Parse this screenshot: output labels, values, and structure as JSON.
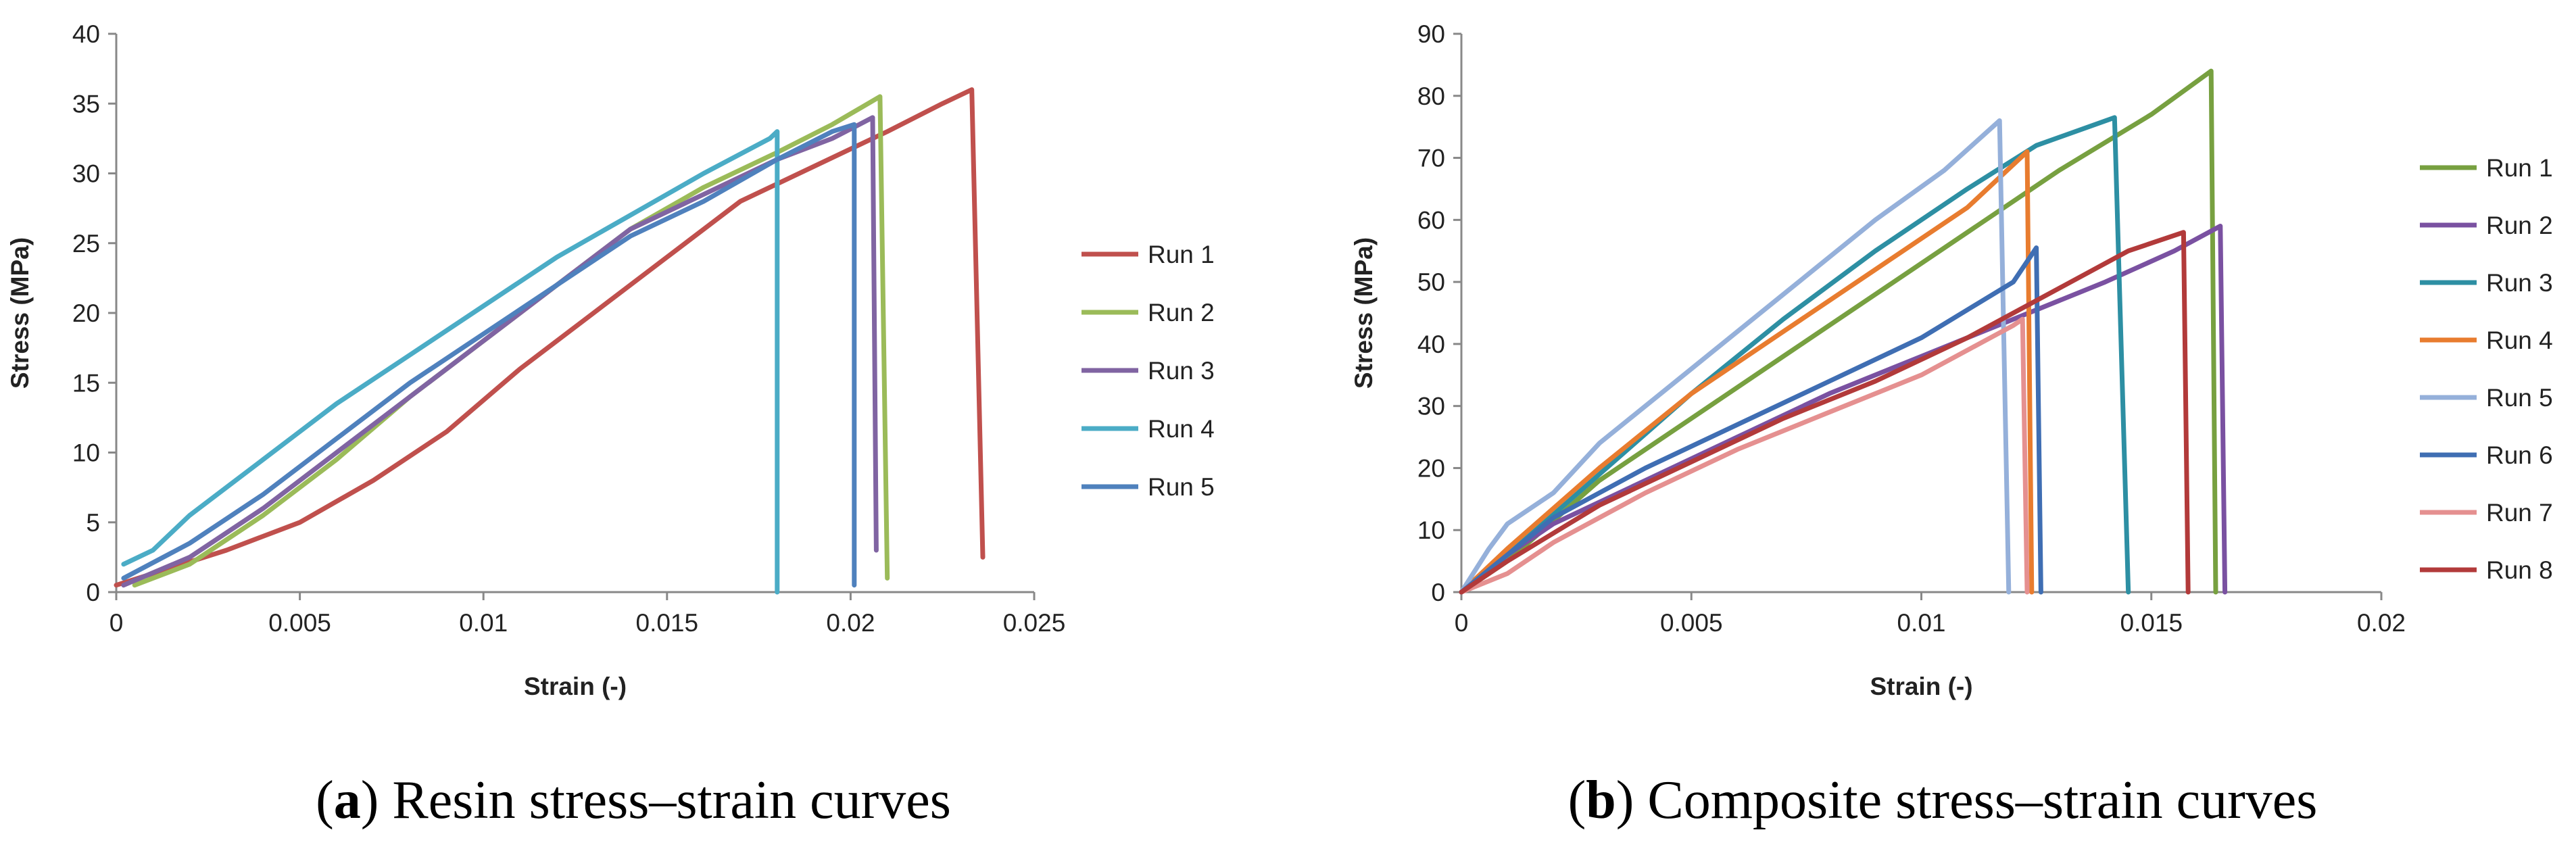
{
  "chart_data": [
    {
      "type": "line",
      "caption_letter": "a",
      "caption_text": ") Resin stress–strain curves",
      "caption_open": "(",
      "xlabel": "Strain (-)",
      "ylabel": "Stress (MPa)",
      "xlim": [
        0,
        0.025
      ],
      "ylim": [
        0,
        40
      ],
      "xticks": [
        0,
        0.005,
        0.01,
        0.015,
        0.02,
        0.025
      ],
      "xtick_labels": [
        "0",
        "0.005",
        "0.01",
        "0.015",
        "0.02",
        "0.025"
      ],
      "yticks": [
        0,
        5,
        10,
        15,
        20,
        25,
        30,
        35,
        40
      ],
      "ytick_labels": [
        "0",
        "5",
        "10",
        "15",
        "20",
        "25",
        "30",
        "35",
        "40"
      ],
      "legend_position": "right",
      "series": [
        {
          "name": "Run 1",
          "color": "#C0504D",
          "points": [
            [
              0,
              0.5
            ],
            [
              0.003,
              3
            ],
            [
              0.004,
              4
            ],
            [
              0.005,
              5
            ],
            [
              0.007,
              8
            ],
            [
              0.009,
              11.5
            ],
            [
              0.011,
              16
            ],
            [
              0.013,
              20
            ],
            [
              0.015,
              24
            ],
            [
              0.017,
              28
            ],
            [
              0.019,
              30.5
            ],
            [
              0.021,
              33
            ],
            [
              0.0225,
              35
            ],
            [
              0.0233,
              36
            ],
            [
              0.0236,
              2.5
            ]
          ]
        },
        {
          "name": "Run 2",
          "color": "#9BBB59",
          "points": [
            [
              0.0005,
              0.5
            ],
            [
              0.002,
              2
            ],
            [
              0.004,
              5.5
            ],
            [
              0.006,
              9.5
            ],
            [
              0.008,
              14
            ],
            [
              0.01,
              18
            ],
            [
              0.012,
              22
            ],
            [
              0.014,
              26
            ],
            [
              0.016,
              29
            ],
            [
              0.018,
              31.5
            ],
            [
              0.0195,
              33.5
            ],
            [
              0.0208,
              35.5
            ],
            [
              0.021,
              1
            ]
          ]
        },
        {
          "name": "Run 3",
          "color": "#8064A2",
          "points": [
            [
              0.0002,
              0.5
            ],
            [
              0.002,
              2.5
            ],
            [
              0.004,
              6
            ],
            [
              0.006,
              10
            ],
            [
              0.008,
              14
            ],
            [
              0.01,
              18
            ],
            [
              0.012,
              22
            ],
            [
              0.014,
              26
            ],
            [
              0.016,
              28.5
            ],
            [
              0.018,
              31
            ],
            [
              0.0195,
              32.5
            ],
            [
              0.0206,
              34
            ],
            [
              0.0207,
              3
            ]
          ]
        },
        {
          "name": "Run 4",
          "color": "#4BACC6",
          "points": [
            [
              0.0002,
              2
            ],
            [
              0.001,
              3
            ],
            [
              0.002,
              5.5
            ],
            [
              0.003,
              7.5
            ],
            [
              0.004,
              9.5
            ],
            [
              0.005,
              11.5
            ],
            [
              0.006,
              13.5
            ],
            [
              0.008,
              17
            ],
            [
              0.01,
              20.5
            ],
            [
              0.012,
              24
            ],
            [
              0.014,
              27
            ],
            [
              0.016,
              30
            ],
            [
              0.0178,
              32.5
            ],
            [
              0.018,
              33
            ],
            [
              0.018,
              0
            ]
          ]
        },
        {
          "name": "Run 5",
          "color": "#4F81BD",
          "points": [
            [
              0.0002,
              1
            ],
            [
              0.002,
              3.5
            ],
            [
              0.004,
              7
            ],
            [
              0.006,
              11
            ],
            [
              0.008,
              15
            ],
            [
              0.01,
              18.5
            ],
            [
              0.012,
              22
            ],
            [
              0.014,
              25.5
            ],
            [
              0.016,
              28
            ],
            [
              0.018,
              31
            ],
            [
              0.0195,
              33
            ],
            [
              0.0201,
              33.5
            ],
            [
              0.0201,
              0.5
            ]
          ]
        }
      ]
    },
    {
      "type": "line",
      "caption_letter": "b",
      "caption_text": ") Composite stress–strain curves",
      "caption_open": "(",
      "xlabel": "Strain (-)",
      "ylabel": "Stress (MPa)",
      "xlim": [
        0,
        0.02
      ],
      "ylim": [
        0,
        90
      ],
      "xticks": [
        0,
        0.005,
        0.01,
        0.015,
        0.02
      ],
      "xtick_labels": [
        "0",
        "0.005",
        "0.01",
        "0.015",
        "0.02"
      ],
      "yticks": [
        0,
        10,
        20,
        30,
        40,
        50,
        60,
        70,
        80,
        90
      ],
      "ytick_labels": [
        "0",
        "10",
        "20",
        "30",
        "40",
        "50",
        "60",
        "70",
        "80",
        "90"
      ],
      "legend_position": "right",
      "series": [
        {
          "name": "Run 1",
          "color": "#77A040",
          "points": [
            [
              0,
              0
            ],
            [
              0.001,
              5
            ],
            [
              0.003,
              18
            ],
            [
              0.005,
              28
            ],
            [
              0.007,
              38
            ],
            [
              0.009,
              48
            ],
            [
              0.011,
              58
            ],
            [
              0.013,
              68
            ],
            [
              0.015,
              77
            ],
            [
              0.0163,
              84
            ],
            [
              0.0164,
              0
            ]
          ]
        },
        {
          "name": "Run 2",
          "color": "#7A51A1",
          "points": [
            [
              0,
              0
            ],
            [
              0.001,
              6
            ],
            [
              0.002,
              11
            ],
            [
              0.004,
              18
            ],
            [
              0.006,
              25
            ],
            [
              0.008,
              32
            ],
            [
              0.01,
              38
            ],
            [
              0.012,
              44
            ],
            [
              0.014,
              50
            ],
            [
              0.0155,
              55
            ],
            [
              0.0165,
              59
            ],
            [
              0.0166,
              0
            ]
          ]
        },
        {
          "name": "Run 3",
          "color": "#2D8FA3",
          "points": [
            [
              0,
              0
            ],
            [
              0.001,
              6
            ],
            [
              0.003,
              19
            ],
            [
              0.005,
              32
            ],
            [
              0.007,
              44
            ],
            [
              0.009,
              55
            ],
            [
              0.011,
              65
            ],
            [
              0.0125,
              72
            ],
            [
              0.0142,
              76.5
            ],
            [
              0.0145,
              0
            ]
          ]
        },
        {
          "name": "Run 4",
          "color": "#E87C2F",
          "points": [
            [
              0,
              0
            ],
            [
              0.001,
              7
            ],
            [
              0.003,
              20
            ],
            [
              0.005,
              32
            ],
            [
              0.007,
              42
            ],
            [
              0.009,
              52
            ],
            [
              0.011,
              62
            ],
            [
              0.0123,
              71
            ],
            [
              0.0124,
              0
            ]
          ]
        },
        {
          "name": "Run 5",
          "color": "#95B0DA",
          "points": [
            [
              0,
              0
            ],
            [
              0.0006,
              7
            ],
            [
              0.001,
              11
            ],
            [
              0.002,
              16
            ],
            [
              0.003,
              24
            ],
            [
              0.005,
              36
            ],
            [
              0.007,
              48
            ],
            [
              0.009,
              60
            ],
            [
              0.0105,
              68
            ],
            [
              0.0117,
              76
            ],
            [
              0.0119,
              0
            ]
          ]
        },
        {
          "name": "Run 6",
          "color": "#3F6EB3",
          "points": [
            [
              0,
              0
            ],
            [
              0.001,
              6
            ],
            [
              0.002,
              12
            ],
            [
              0.004,
              20
            ],
            [
              0.006,
              27
            ],
            [
              0.008,
              34
            ],
            [
              0.01,
              41
            ],
            [
              0.012,
              50
            ],
            [
              0.0125,
              55.5
            ],
            [
              0.0126,
              0
            ]
          ]
        },
        {
          "name": "Run 7",
          "color": "#E59090",
          "points": [
            [
              0,
              0
            ],
            [
              0.001,
              3
            ],
            [
              0.002,
              8
            ],
            [
              0.004,
              16
            ],
            [
              0.006,
              23
            ],
            [
              0.008,
              29
            ],
            [
              0.01,
              35
            ],
            [
              0.012,
              43
            ],
            [
              0.0122,
              44
            ],
            [
              0.0123,
              0
            ]
          ]
        },
        {
          "name": "Run 8",
          "color": "#B23A3A",
          "points": [
            [
              0,
              0
            ],
            [
              0.001,
              5
            ],
            [
              0.003,
              14
            ],
            [
              0.005,
              21
            ],
            [
              0.007,
              28
            ],
            [
              0.009,
              34
            ],
            [
              0.011,
              41
            ],
            [
              0.013,
              49
            ],
            [
              0.0145,
              55
            ],
            [
              0.0157,
              58
            ],
            [
              0.0158,
              0
            ]
          ]
        }
      ]
    }
  ]
}
